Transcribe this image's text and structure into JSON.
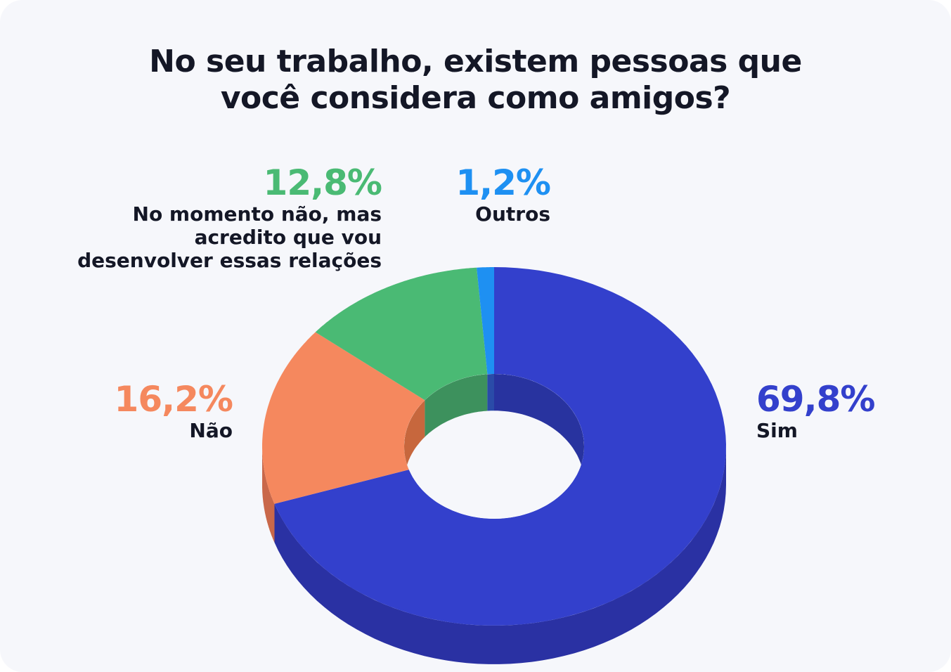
{
  "title_lines": [
    "No seu trabalho, existem pessoas que",
    "você considera como amigos?"
  ],
  "chart_data": {
    "type": "pie",
    "variant": "3d-donut",
    "title": "No seu trabalho, existem pessoas que você considera como amigos?",
    "slices": [
      {
        "label": "Sim",
        "label_lines": [
          "Sim"
        ],
        "value": 69.8,
        "display": "69,8%",
        "color": "#3340cc",
        "side_color": "#2a31a3",
        "inner_color": "#28339f"
      },
      {
        "label": "Não",
        "label_lines": [
          "Não"
        ],
        "value": 16.2,
        "display": "16,2%",
        "color": "#f5885e",
        "side_color": "#c9684a",
        "inner_color": "#c7673d"
      },
      {
        "label": "No momento não, mas acredito que vou desenvolver essas relações",
        "label_lines": [
          "No momento não, mas",
          "acredito que vou",
          "desenvolver essas relações"
        ],
        "value": 12.8,
        "display": "12,8%",
        "color": "#4aba74",
        "side_color": "#3a955c",
        "inner_color": "#3d915d"
      },
      {
        "label": "Outros",
        "label_lines": [
          "Outros"
        ],
        "value": 1.2,
        "display": "1,2%",
        "color": "#1e90f2",
        "side_color": "#1874c2",
        "inner_color": "#2a4ba8"
      }
    ]
  }
}
